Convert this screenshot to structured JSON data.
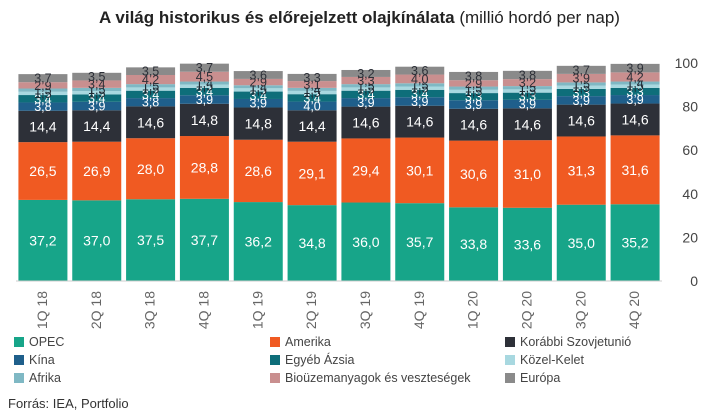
{
  "title": "A világ historikus és előrejelzett olajkínálata",
  "title_unit": "(millió hordó per nap)",
  "source": "Forrás: IEA, Portfolio",
  "chart_data": {
    "type": "bar",
    "stacked": true,
    "title": "A világ historikus és előrejelzett olajkínálata (millió hordó per nap)",
    "categories": [
      "1Q 18",
      "2Q 18",
      "3Q 18",
      "4Q 18",
      "1Q 19",
      "2Q 19",
      "3Q 19",
      "4Q 19",
      "1Q 20",
      "2Q 20",
      "3Q 20",
      "4Q 20"
    ],
    "ylim": [
      0,
      100
    ],
    "yticks": [
      0,
      20,
      40,
      60,
      80,
      100
    ],
    "y_axis_side": "right",
    "grid": false,
    "legend_position": "bottom",
    "series": [
      {
        "name": "OPEC",
        "color": "#17a589",
        "values": [
          37.2,
          37.0,
          37.5,
          37.7,
          36.2,
          34.8,
          36.0,
          35.7,
          33.8,
          33.6,
          35.0,
          35.2
        ]
      },
      {
        "name": "Amerika",
        "color": "#f05a22",
        "values": [
          26.5,
          26.9,
          28.0,
          28.8,
          28.6,
          29.1,
          29.4,
          30.1,
          30.6,
          31.0,
          31.3,
          31.6
        ]
      },
      {
        "name": "Korábbi Szovjetunió",
        "color": "#2d3038",
        "values": [
          14.4,
          14.4,
          14.6,
          14.8,
          14.8,
          14.4,
          14.6,
          14.6,
          14.6,
          14.6,
          14.6,
          14.6
        ]
      },
      {
        "name": "Kína",
        "color": "#1f5f8b",
        "values": [
          3.8,
          3.9,
          3.8,
          3.9,
          3.9,
          4.0,
          3.9,
          3.9,
          3.9,
          3.9,
          3.9,
          3.9
        ]
      },
      {
        "name": "Egyéb Ázsia",
        "color": "#0e6e7a",
        "values": [
          3.4,
          3.4,
          3.4,
          3.4,
          3.4,
          3.4,
          3.4,
          3.4,
          3.3,
          3.3,
          3.3,
          3.3
        ]
      },
      {
        "name": "Közel-Kelet",
        "color": "#a8d8e0",
        "values": [
          1.5,
          1.5,
          1.5,
          1.5,
          1.5,
          1.5,
          1.5,
          1.5,
          1.5,
          1.5,
          1.5,
          1.5
        ]
      },
      {
        "name": "Afrika",
        "color": "#7fb8c4",
        "values": [
          1.5,
          1.5,
          1.5,
          1.4,
          1.4,
          1.4,
          1.5,
          1.5,
          1.5,
          1.5,
          1.5,
          1.4
        ]
      },
      {
        "name": "Bioüzemanyagok és veszteségek",
        "color": "#c98f8f",
        "values": [
          2.9,
          3.4,
          4.2,
          4.5,
          2.9,
          3.1,
          3.3,
          4.0,
          2.9,
          3.2,
          3.9,
          4.2
        ]
      },
      {
        "name": "Európa",
        "color": "#8a8a8a",
        "values": [
          3.7,
          3.5,
          3.5,
          3.7,
          3.6,
          3.3,
          3.2,
          3.6,
          3.8,
          3.8,
          3.7,
          3.9
        ]
      }
    ]
  }
}
